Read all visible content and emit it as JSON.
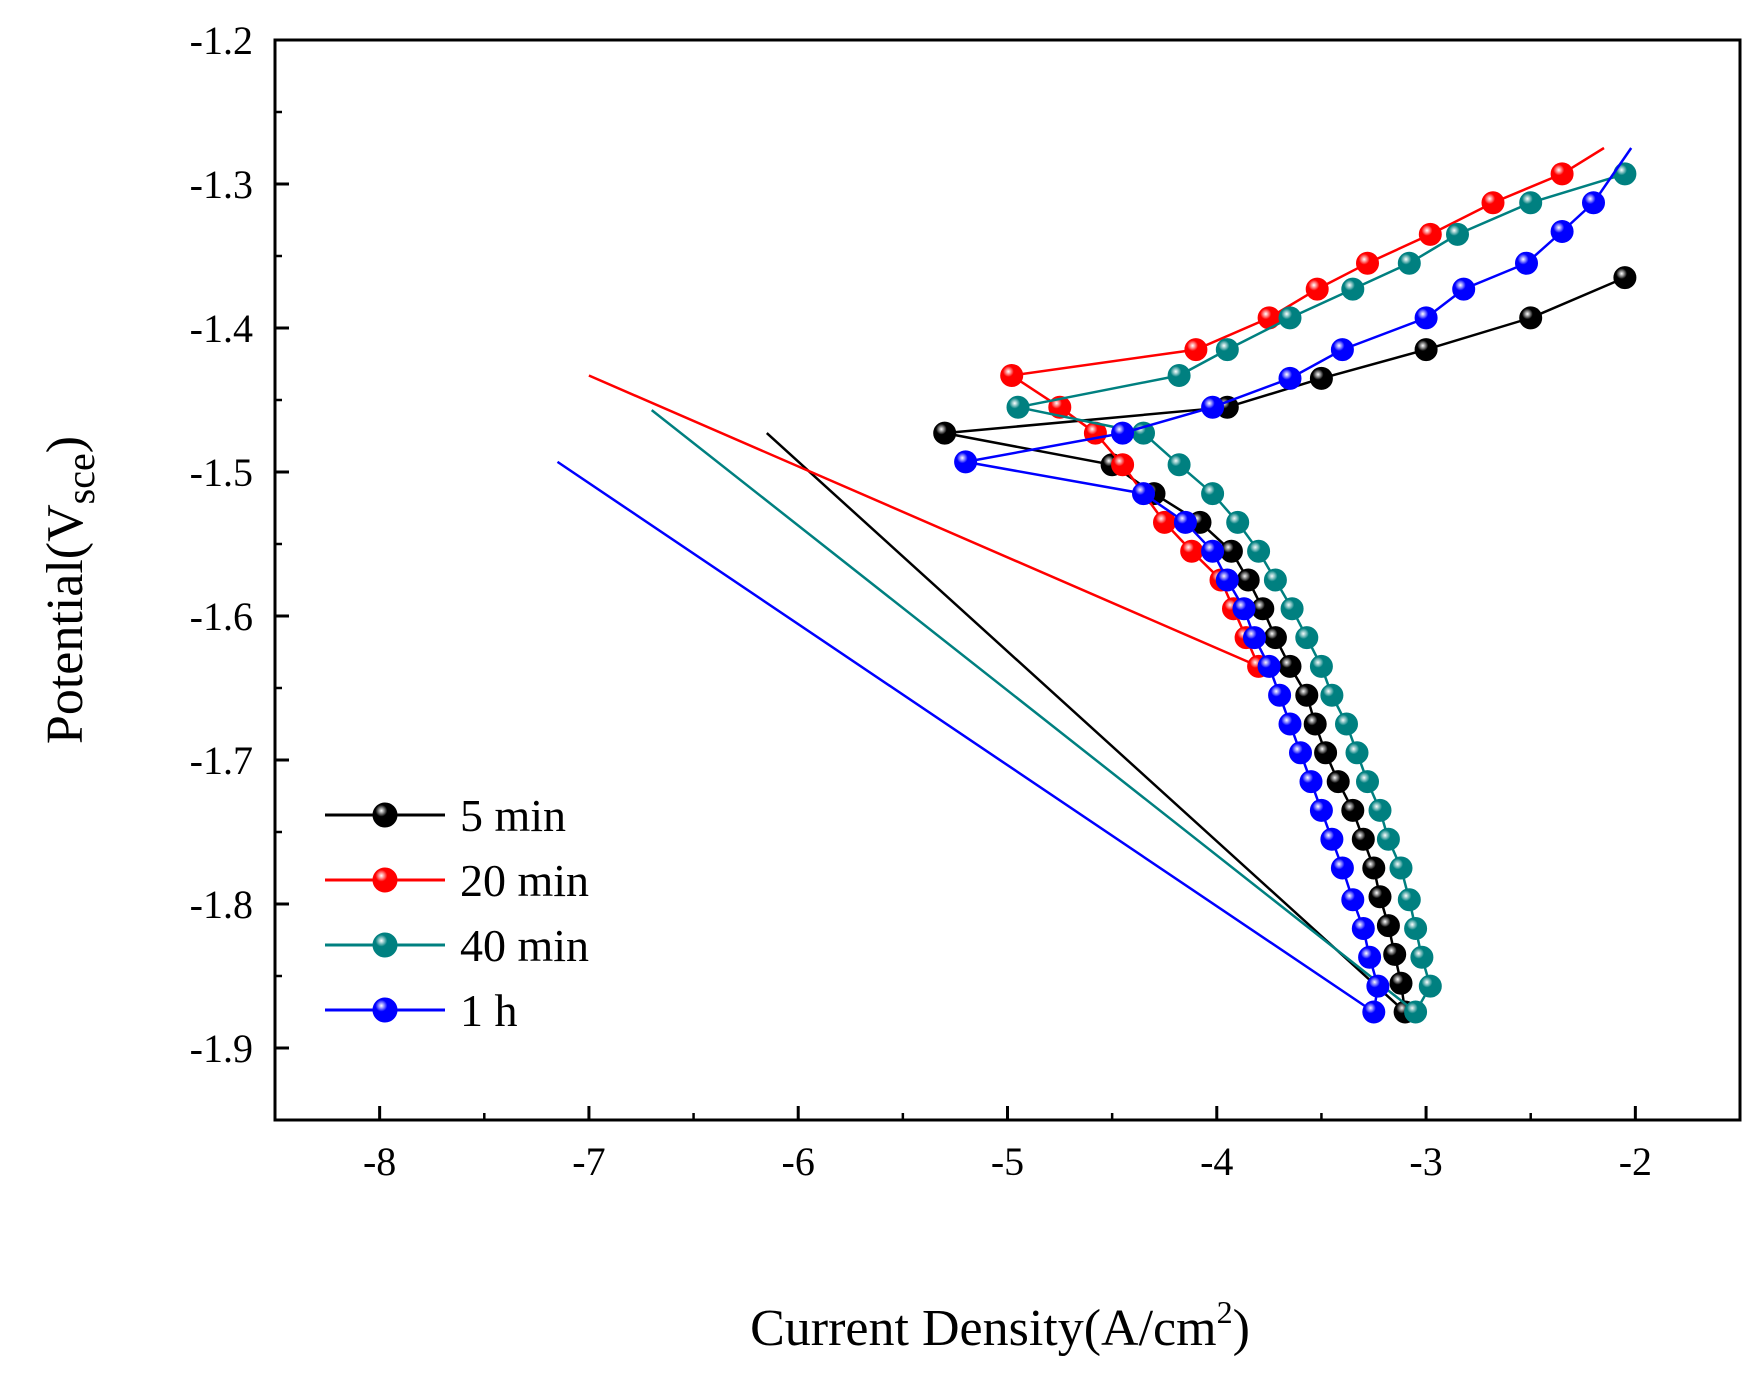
{
  "chart_data": {
    "type": "scatter",
    "title": "",
    "xlabel": "Current Density(A/cm",
    "xlabel_superscript": "2",
    "xlabel_suffix": ")",
    "ylabel": "Potential(V",
    "ylabel_subscript": "sce",
    "ylabel_suffix": ")",
    "xlim": [
      -8.5,
      -1.5
    ],
    "ylim": [
      -1.95,
      -1.2
    ],
    "x_ticks": [
      -8,
      -7,
      -6,
      -5,
      -4,
      -3,
      -2
    ],
    "x_tick_labels": [
      "-8",
      "-7",
      "-6",
      "-5",
      "-4",
      "-3",
      "-2"
    ],
    "y_ticks": [
      -1.2,
      -1.3,
      -1.4,
      -1.5,
      -1.6,
      -1.7,
      -1.8,
      -1.9
    ],
    "y_tick_labels": [
      "-1.2",
      "-1.3",
      "-1.4",
      "-1.5",
      "-1.6",
      "-1.7",
      "-1.8",
      "-1.9"
    ],
    "grid": false,
    "legend_position": "bottom-left",
    "series": [
      {
        "name": "5 min",
        "color": "#000000",
        "line_start": [
          -6.15,
          -1.473
        ],
        "points": [
          [
            -3.1,
            -1.875
          ],
          [
            -3.12,
            -1.855
          ],
          [
            -3.15,
            -1.835
          ],
          [
            -3.18,
            -1.815
          ],
          [
            -3.22,
            -1.795
          ],
          [
            -3.25,
            -1.775
          ],
          [
            -3.3,
            -1.755
          ],
          [
            -3.35,
            -1.735
          ],
          [
            -3.42,
            -1.715
          ],
          [
            -3.48,
            -1.695
          ],
          [
            -3.53,
            -1.675
          ],
          [
            -3.57,
            -1.655
          ],
          [
            -3.65,
            -1.635
          ],
          [
            -3.72,
            -1.615
          ],
          [
            -3.78,
            -1.595
          ],
          [
            -3.85,
            -1.575
          ],
          [
            -3.93,
            -1.555
          ],
          [
            -4.08,
            -1.535
          ],
          [
            -4.3,
            -1.515
          ],
          [
            -4.5,
            -1.495
          ],
          [
            -5.3,
            -1.473
          ],
          [
            -3.95,
            -1.455
          ],
          [
            -3.5,
            -1.435
          ],
          [
            -3.0,
            -1.415
          ],
          [
            -2.5,
            -1.393
          ],
          [
            -2.05,
            -1.365
          ]
        ]
      },
      {
        "name": "20 min",
        "color": "#ff0000",
        "line_start": [
          -7.0,
          -1.433
        ],
        "points": [
          [
            -3.8,
            -1.635
          ],
          [
            -3.86,
            -1.615
          ],
          [
            -3.92,
            -1.595
          ],
          [
            -3.98,
            -1.575
          ],
          [
            -4.12,
            -1.555
          ],
          [
            -4.25,
            -1.535
          ],
          [
            -4.45,
            -1.495
          ],
          [
            -4.58,
            -1.473
          ],
          [
            -4.75,
            -1.455
          ],
          [
            -4.98,
            -1.433
          ],
          [
            -4.1,
            -1.415
          ],
          [
            -3.75,
            -1.393
          ],
          [
            -3.52,
            -1.373
          ],
          [
            -3.28,
            -1.355
          ],
          [
            -2.98,
            -1.335
          ],
          [
            -2.68,
            -1.313
          ],
          [
            -2.35,
            -1.293
          ]
        ],
        "line_end": [
          -2.15,
          -1.275
        ]
      },
      {
        "name": "40 min",
        "color": "#008080",
        "line_start": [
          -6.7,
          -1.457
        ],
        "points": [
          [
            -3.05,
            -1.875
          ],
          [
            -2.98,
            -1.857
          ],
          [
            -3.02,
            -1.837
          ],
          [
            -3.05,
            -1.817
          ],
          [
            -3.08,
            -1.797
          ],
          [
            -3.12,
            -1.775
          ],
          [
            -3.18,
            -1.755
          ],
          [
            -3.22,
            -1.735
          ],
          [
            -3.28,
            -1.715
          ],
          [
            -3.33,
            -1.695
          ],
          [
            -3.38,
            -1.675
          ],
          [
            -3.45,
            -1.655
          ],
          [
            -3.5,
            -1.635
          ],
          [
            -3.57,
            -1.615
          ],
          [
            -3.64,
            -1.595
          ],
          [
            -3.72,
            -1.575
          ],
          [
            -3.8,
            -1.555
          ],
          [
            -3.9,
            -1.535
          ],
          [
            -4.02,
            -1.515
          ],
          [
            -4.18,
            -1.495
          ],
          [
            -4.35,
            -1.473
          ],
          [
            -4.95,
            -1.455
          ],
          [
            -4.18,
            -1.433
          ],
          [
            -3.95,
            -1.415
          ],
          [
            -3.65,
            -1.393
          ],
          [
            -3.35,
            -1.373
          ],
          [
            -3.08,
            -1.355
          ],
          [
            -2.85,
            -1.335
          ],
          [
            -2.5,
            -1.313
          ],
          [
            -2.05,
            -1.293
          ]
        ]
      },
      {
        "name": "1 h",
        "color": "#0000ff",
        "line_start": [
          -7.15,
          -1.493
        ],
        "points": [
          [
            -3.25,
            -1.875
          ],
          [
            -3.23,
            -1.857
          ],
          [
            -3.27,
            -1.837
          ],
          [
            -3.3,
            -1.817
          ],
          [
            -3.35,
            -1.797
          ],
          [
            -3.4,
            -1.775
          ],
          [
            -3.45,
            -1.755
          ],
          [
            -3.5,
            -1.735
          ],
          [
            -3.55,
            -1.715
          ],
          [
            -3.6,
            -1.695
          ],
          [
            -3.65,
            -1.675
          ],
          [
            -3.7,
            -1.655
          ],
          [
            -3.75,
            -1.635
          ],
          [
            -3.82,
            -1.615
          ],
          [
            -3.87,
            -1.595
          ],
          [
            -3.95,
            -1.575
          ],
          [
            -4.02,
            -1.555
          ],
          [
            -4.15,
            -1.535
          ],
          [
            -4.35,
            -1.515
          ],
          [
            -5.2,
            -1.493
          ],
          [
            -4.45,
            -1.473
          ],
          [
            -4.02,
            -1.455
          ],
          [
            -3.65,
            -1.435
          ],
          [
            -3.4,
            -1.415
          ],
          [
            -3.0,
            -1.393
          ],
          [
            -2.82,
            -1.373
          ],
          [
            -2.52,
            -1.355
          ],
          [
            -2.35,
            -1.333
          ],
          [
            -2.2,
            -1.313
          ]
        ],
        "line_end": [
          -2.02,
          -1.275
        ]
      }
    ]
  }
}
